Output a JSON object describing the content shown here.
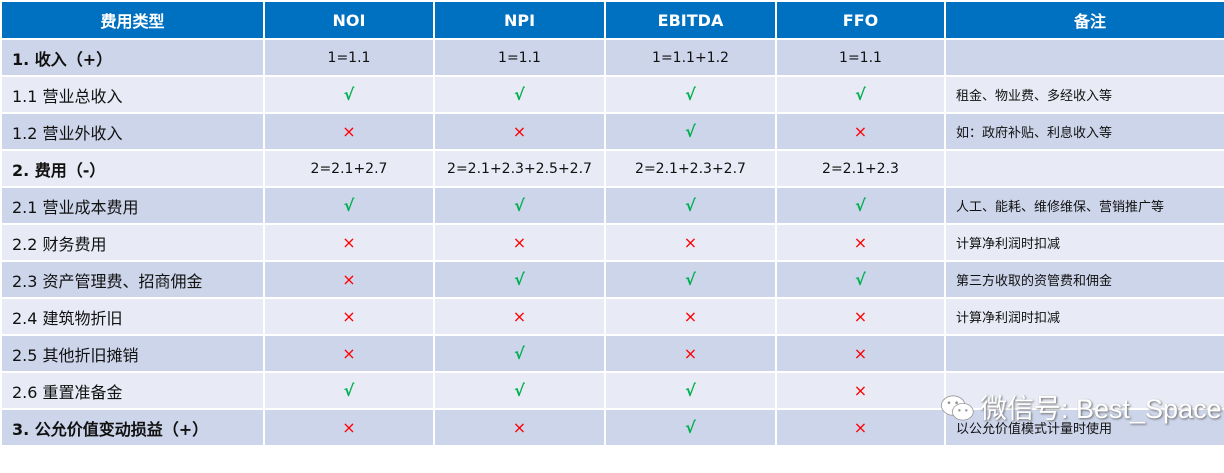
{
  "headers": [
    "费用类型",
    "NOI",
    "NPI",
    "EBITDA",
    "FFO",
    "备注"
  ],
  "rows": [
    {
      "name": "1. 收入（+）",
      "bold": true,
      "cells": [
        "1=1.1",
        "1=1.1",
        "1=1.1+1.2",
        "1=1.1"
      ],
      "note": ""
    },
    {
      "name": "1.1 营业总收入",
      "cells": [
        "√",
        "√",
        "√",
        "√"
      ],
      "note": "租金、物业费、多经收入等"
    },
    {
      "name": "1.2 营业外收入",
      "cells": [
        "×",
        "×",
        "√",
        "×"
      ],
      "note": "如：政府补贴、利息收入等"
    },
    {
      "name": "2. 费用（-）",
      "bold": true,
      "cells": [
        "2=2.1+2.7",
        "2=2.1+2.3+2.5+2.7",
        "2=2.1+2.3+2.7",
        "2=2.1+2.3"
      ],
      "note": ""
    },
    {
      "name": "2.1 营业成本费用",
      "cells": [
        "√",
        "√",
        "√",
        "√"
      ],
      "note": "人工、能耗、维修维保、营销推广等"
    },
    {
      "name": "2.2 财务费用",
      "cells": [
        "×",
        "×",
        "×",
        "×"
      ],
      "note": "计算净利润时扣减"
    },
    {
      "name": "2.3 资产管理费、招商佣金",
      "cells": [
        "×",
        "√",
        "√",
        "√"
      ],
      "note": "第三方收取的资管费和佣金"
    },
    {
      "name": "2.4 建筑物折旧",
      "cells": [
        "×",
        "×",
        "×",
        "×"
      ],
      "note": "计算净利润时扣减"
    },
    {
      "name": "2.5 其他折旧摊销",
      "cells": [
        "×",
        "√",
        "×",
        "×"
      ],
      "note": ""
    },
    {
      "name": "2.6 重置准备金",
      "cells": [
        "√",
        "√",
        "√",
        "×"
      ],
      "note": ""
    },
    {
      "name": "3. 公允价值变动损益（+）",
      "bold": true,
      "cells": [
        "×",
        "×",
        "√",
        "×"
      ],
      "note": "以公允价值模式计量时使用"
    }
  ],
  "watermark": "微信号: Best_Space",
  "colors": {
    "header": "#0070c0",
    "row_dark": "#cdd5ea",
    "row_light": "#e8ebf5",
    "check": "#00b050",
    "cross": "#ff0000"
  }
}
